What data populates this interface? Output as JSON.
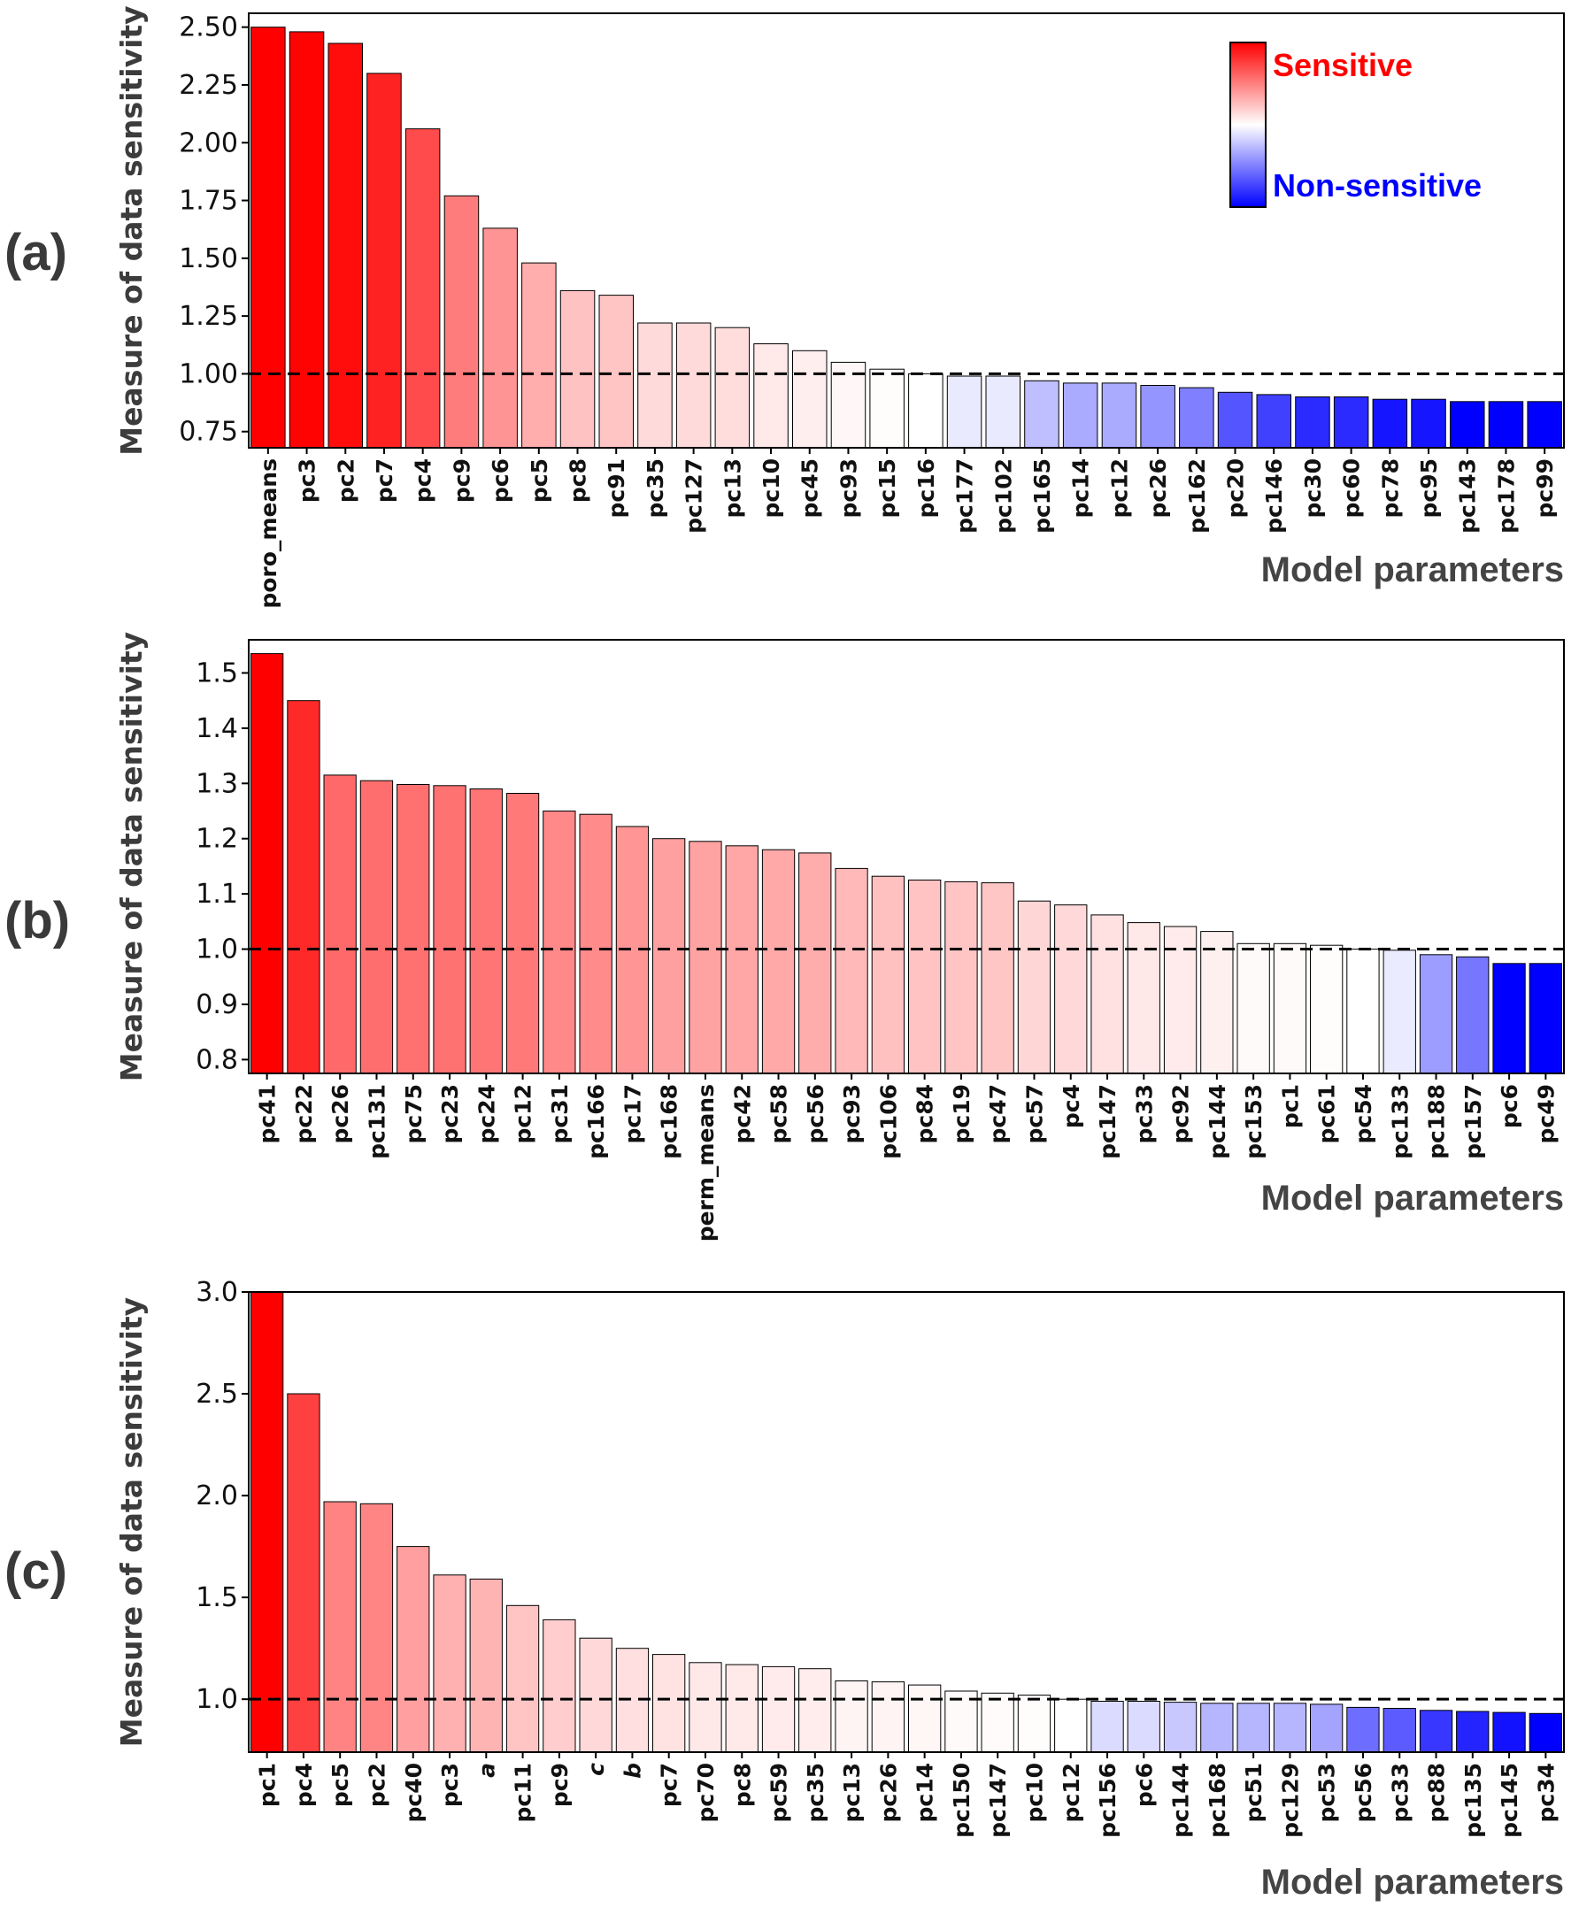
{
  "legend": {
    "high_label": "Sensitive",
    "low_label": "Non-sensitive",
    "high_color": "#ff0000",
    "low_color": "#0000ff"
  },
  "chart_data": [
    {
      "panel": "(a)",
      "type": "bar",
      "ylabel": "Measure of data sensitivity",
      "xlabel": "Model parameters",
      "ylim": [
        0.68,
        2.56
      ],
      "yticks": [
        "0.75",
        "1.00",
        "1.25",
        "1.50",
        "1.75",
        "2.00",
        "2.25",
        "2.50"
      ],
      "reference_line": 1.0,
      "categories": [
        "poro_means",
        "pc3",
        "pc2",
        "pc7",
        "pc4",
        "pc9",
        "pc6",
        "pc5",
        "pc8",
        "pc91",
        "pc35",
        "pc127",
        "pc13",
        "pc10",
        "pc45",
        "pc93",
        "pc15",
        "pc16",
        "pc177",
        "pc102",
        "pc165",
        "pc14",
        "pc12",
        "pc26",
        "pc162",
        "pc20",
        "pc146",
        "pc30",
        "pc60",
        "pc78",
        "pc95",
        "pc143",
        "pc178",
        "pc99"
      ],
      "values": [
        2.5,
        2.48,
        2.43,
        2.3,
        2.06,
        1.77,
        1.63,
        1.48,
        1.36,
        1.34,
        1.22,
        1.22,
        1.2,
        1.13,
        1.1,
        1.05,
        1.02,
        1.0,
        0.99,
        0.99,
        0.97,
        0.96,
        0.96,
        0.95,
        0.94,
        0.92,
        0.91,
        0.9,
        0.9,
        0.89,
        0.89,
        0.88,
        0.88,
        0.88
      ],
      "legend_position": "top-right"
    },
    {
      "panel": "(b)",
      "type": "bar",
      "ylabel": "Measure of data sensitivity",
      "xlabel": "Model parameters",
      "ylim": [
        0.775,
        1.56
      ],
      "yticks": [
        "0.8",
        "0.9",
        "1.0",
        "1.1",
        "1.2",
        "1.3",
        "1.4",
        "1.5"
      ],
      "reference_line": 1.0,
      "categories": [
        "pc41",
        "pc22",
        "pc26",
        "pc131",
        "pc75",
        "pc23",
        "pc24",
        "pc12",
        "pc31",
        "pc166",
        "pc17",
        "pc168",
        "perm_means",
        "pc42",
        "pc58",
        "pc56",
        "pc93",
        "pc106",
        "pc84",
        "pc19",
        "pc47",
        "pc57",
        "pc4",
        "pc147",
        "pc33",
        "pc92",
        "pc144",
        "pc153",
        "pc1",
        "pc61",
        "pc54",
        "pc133",
        "pc188",
        "pc157",
        "pc6",
        "pc49"
      ],
      "values": [
        1.535,
        1.45,
        1.315,
        1.305,
        1.298,
        1.296,
        1.29,
        1.282,
        1.25,
        1.244,
        1.222,
        1.2,
        1.195,
        1.187,
        1.18,
        1.174,
        1.146,
        1.132,
        1.125,
        1.122,
        1.12,
        1.087,
        1.08,
        1.062,
        1.048,
        1.041,
        1.032,
        1.01,
        1.01,
        1.007,
        1.0,
        0.998,
        0.99,
        0.986,
        0.974,
        0.974
      ]
    },
    {
      "panel": "(c)",
      "type": "bar",
      "ylabel": "Measure of data sensitivity",
      "xlabel": "Model parameters",
      "ylim": [
        0.74,
        3.0
      ],
      "yticks": [
        "1.0",
        "1.5",
        "2.0",
        "2.5",
        "3.0"
      ],
      "reference_line": 1.0,
      "categories": [
        "pc1",
        "pc4",
        "pc5",
        "pc2",
        "pc40",
        "pc3",
        "a",
        "pc11",
        "pc9",
        "c",
        "b",
        "pc7",
        "pc70",
        "pc8",
        "pc59",
        "pc35",
        "pc13",
        "pc26",
        "pc14",
        "pc150",
        "pc147",
        "pc10",
        "pc12",
        "pc156",
        "pc6",
        "pc144",
        "pc168",
        "pc51",
        "pc129",
        "pc53",
        "pc56",
        "pc33",
        "pc88",
        "pc135",
        "pc145",
        "pc34"
      ],
      "values": [
        3.0,
        2.5,
        1.97,
        1.96,
        1.75,
        1.61,
        1.59,
        1.46,
        1.39,
        1.3,
        1.25,
        1.22,
        1.18,
        1.17,
        1.16,
        1.15,
        1.09,
        1.085,
        1.07,
        1.04,
        1.03,
        1.02,
        1.0,
        0.99,
        0.99,
        0.985,
        0.98,
        0.98,
        0.98,
        0.975,
        0.96,
        0.955,
        0.945,
        0.94,
        0.935,
        0.93
      ]
    }
  ]
}
